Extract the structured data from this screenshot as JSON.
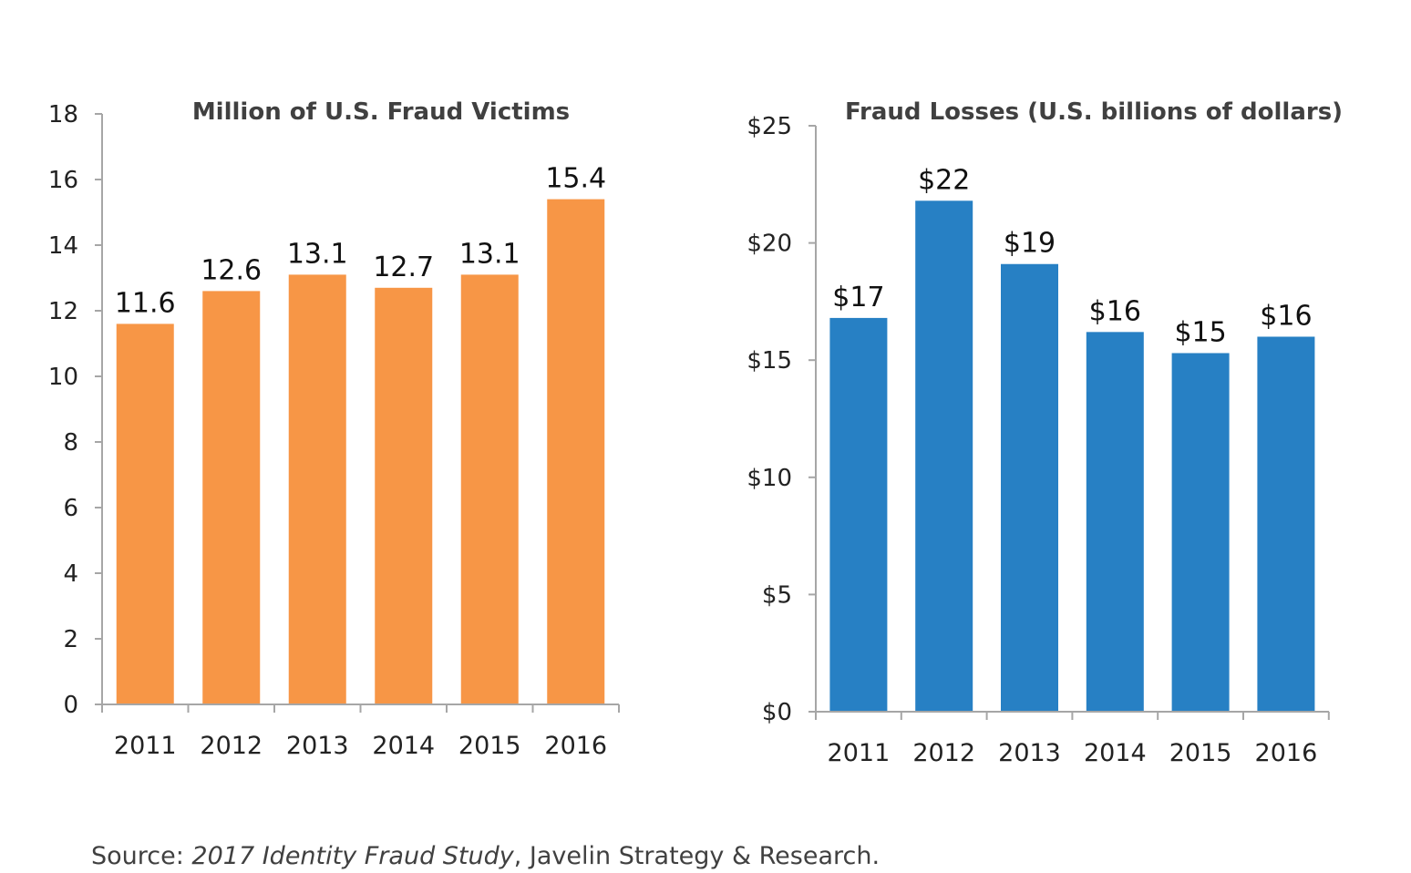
{
  "chart_data": [
    {
      "type": "bar",
      "title": "Million of U.S. Fraud Victims",
      "categories": [
        "2011",
        "2012",
        "2013",
        "2014",
        "2015",
        "2016"
      ],
      "values": [
        11.6,
        12.6,
        13.1,
        12.7,
        13.1,
        15.4
      ],
      "value_labels": [
        "11.6",
        "12.6",
        "13.1",
        "12.7",
        "13.1",
        "15.4"
      ],
      "ylim": [
        0,
        18
      ],
      "yticks": [
        0,
        2,
        4,
        6,
        8,
        10,
        12,
        14,
        16,
        18
      ],
      "ytick_labels": [
        "0",
        "2",
        "4",
        "6",
        "8",
        "10",
        "12",
        "14",
        "16",
        "18"
      ],
      "color": "#F79646",
      "grid": false
    },
    {
      "type": "bar",
      "title": "Fraud Losses (U.S. billions of dollars)",
      "categories": [
        "2011",
        "2012",
        "2013",
        "2014",
        "2015",
        "2016"
      ],
      "values": [
        16.8,
        21.8,
        19.1,
        16.2,
        15.3,
        16.0
      ],
      "value_labels": [
        "$17",
        "$22",
        "$19",
        "$16",
        "$15",
        "$16"
      ],
      "ylim": [
        0,
        25
      ],
      "yticks": [
        0,
        5,
        10,
        15,
        20,
        25
      ],
      "ytick_labels": [
        "$0",
        "$5",
        "$10",
        "$15",
        "$20",
        "$25"
      ],
      "color": "#2780C4",
      "grid": false
    }
  ],
  "source": {
    "prefix": "Source: ",
    "study": "2017 Identity Fraud Study",
    "suffix": ", Javelin Strategy & Research."
  }
}
